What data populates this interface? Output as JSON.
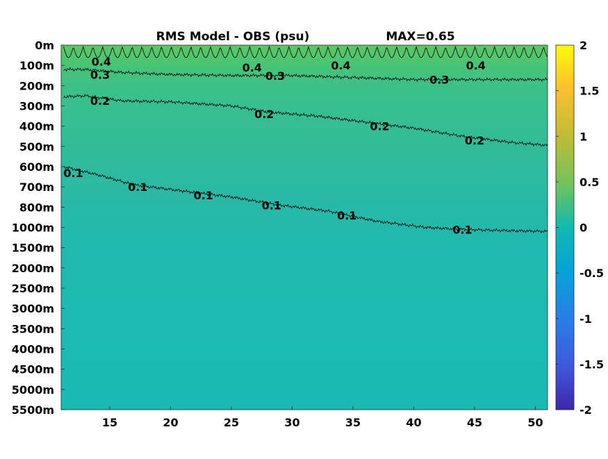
{
  "chart_data": {
    "type": "heatmap",
    "title": "RMS Model - OBS (psu)",
    "max_label": "MAX=0.65",
    "xlabel": "",
    "ylabel": "",
    "xlim": [
      11,
      51
    ],
    "x_ticks": [
      15,
      20,
      25,
      30,
      35,
      40,
      45,
      50
    ],
    "y_ticks": [
      "0m",
      "100m",
      "200m",
      "300m",
      "400m",
      "500m",
      "600m",
      "700m",
      "800m",
      "1000m",
      "1500m",
      "2000m",
      "2500m",
      "3000m",
      "3500m",
      "4000m",
      "4500m",
      "5000m",
      "5500m"
    ],
    "colorbar": {
      "range": [
        -2,
        2
      ],
      "ticks": [
        2,
        1.5,
        1,
        0.5,
        0,
        -0.5,
        -1,
        -1.5,
        -2
      ],
      "tick_labels": [
        "2",
        "1.5",
        "1",
        "0.5",
        "0",
        "-0.5",
        "-1",
        "-1.5",
        "-2"
      ],
      "colormap": "parula"
    },
    "contours": [
      {
        "level": 0.4,
        "points": [
          [
            11.2,
            1.5
          ],
          [
            30,
            1.6
          ],
          [
            51,
            1.6
          ]
        ],
        "labels": [
          {
            "text": "0.4",
            "x": 14.3,
            "y": 0.8
          },
          {
            "text": "0.4",
            "x": 26.7,
            "y": 1.1
          },
          {
            "text": "0.4",
            "x": 34.0,
            "y": 1.0
          },
          {
            "text": "0.4",
            "x": 45.1,
            "y": 1.0
          }
        ]
      },
      {
        "level": 0.3,
        "points": [
          [
            11.2,
            1.2
          ],
          [
            13,
            1.2
          ],
          [
            16,
            1.35
          ],
          [
            20,
            1.45
          ],
          [
            25,
            1.5
          ],
          [
            30,
            1.5
          ],
          [
            35,
            1.6
          ],
          [
            40,
            1.7
          ],
          [
            45,
            1.7
          ],
          [
            51,
            1.7
          ]
        ],
        "labels": [
          {
            "text": "0.3",
            "x": 14.2,
            "y": 1.45
          },
          {
            "text": "0.3",
            "x": 28.6,
            "y": 1.5
          },
          {
            "text": "0.3",
            "x": 42.1,
            "y": 1.7
          }
        ]
      },
      {
        "level": 0.2,
        "points": [
          [
            11.2,
            2.55
          ],
          [
            13,
            2.5
          ],
          [
            16,
            2.75
          ],
          [
            20,
            2.8
          ],
          [
            25,
            3.0
          ],
          [
            28,
            3.3
          ],
          [
            32,
            3.5
          ],
          [
            36,
            3.8
          ],
          [
            40,
            4.1
          ],
          [
            44,
            4.5
          ],
          [
            48,
            4.8
          ],
          [
            51,
            4.95
          ]
        ],
        "labels": [
          {
            "text": "0.2",
            "x": 14.2,
            "y": 2.75
          },
          {
            "text": "0.2",
            "x": 27.7,
            "y": 3.4
          },
          {
            "text": "0.2",
            "x": 37.2,
            "y": 4.0
          },
          {
            "text": "0.2",
            "x": 45.0,
            "y": 4.7
          }
        ]
      },
      {
        "level": 0.1,
        "points": [
          [
            11.2,
            6.0
          ],
          [
            14,
            6.4
          ],
          [
            17,
            6.9
          ],
          [
            21,
            7.2
          ],
          [
            25,
            7.5
          ],
          [
            29,
            7.9
          ],
          [
            33,
            8.2
          ],
          [
            37,
            8.7
          ],
          [
            41,
            9.0
          ],
          [
            44,
            9.1
          ],
          [
            47,
            9.15
          ],
          [
            51,
            9.2
          ]
        ],
        "labels": [
          {
            "text": "0.1",
            "x": 12.0,
            "y": 6.3
          },
          {
            "text": "0.1",
            "x": 17.3,
            "y": 7.0
          },
          {
            "text": "0.1",
            "x": 22.7,
            "y": 7.4
          },
          {
            "text": "0.1",
            "x": 28.3,
            "y": 7.9
          },
          {
            "text": "0.1",
            "x": 34.5,
            "y": 8.4
          },
          {
            "text": "0.1",
            "x": 44.0,
            "y": 9.1
          }
        ]
      }
    ]
  }
}
